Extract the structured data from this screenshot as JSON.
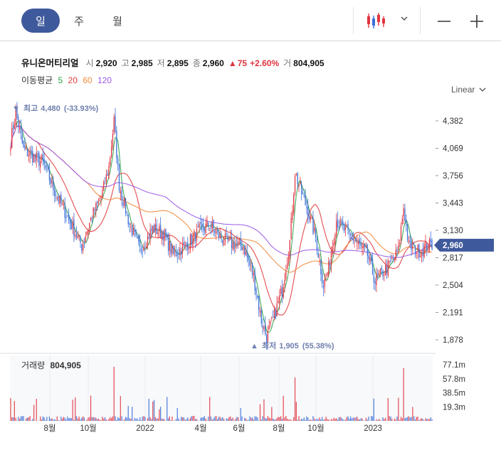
{
  "toolbar": {
    "periods": [
      "일",
      "주",
      "월"
    ],
    "active_period": "일"
  },
  "info": {
    "name": "유니온머티리얼",
    "open_label": "시",
    "open": "2,920",
    "high_label": "고",
    "high": "2,985",
    "low_label": "저",
    "low": "2,895",
    "close_label": "종",
    "close": "2,960",
    "change_arrow": "▲",
    "change": "75",
    "change_pct": "+2.60%",
    "volume_label": "거",
    "volume": "804,905"
  },
  "ma_legend": {
    "label": "이동평균",
    "items": [
      {
        "period": "5",
        "color": "#2da24b"
      },
      {
        "period": "20",
        "color": "#e03a3a"
      },
      {
        "period": "60",
        "color": "#f08a3c"
      },
      {
        "period": "120",
        "color": "#9b59e8"
      }
    ]
  },
  "scale_button": "Linear",
  "colors": {
    "up": "#e0343f",
    "down": "#3a6fd8",
    "accent": "#3f5a9c",
    "annotation": "#6f7fae"
  },
  "chart_data": {
    "type": "candlestick",
    "price_ticks": [
      "4,382",
      "4,069",
      "3,756",
      "3,443",
      "3,130",
      "2,817",
      "2,504",
      "2,191",
      "1,878"
    ],
    "price_tick_values": [
      4382,
      4069,
      3756,
      3443,
      3130,
      2817,
      2504,
      2191,
      1878
    ],
    "price_ylim": [
      1878,
      4382
    ],
    "current_price_label": "2,960",
    "current_price": 2960,
    "high_annotation": {
      "arrow": "▼",
      "label": "최고",
      "value": "4,480",
      "pct": "(-33.93%)"
    },
    "low_annotation": {
      "arrow": "▲",
      "label": "최저",
      "value": "1,905",
      "pct": "(55.38%)"
    },
    "x_labels": [
      "8월",
      "10월",
      "2022",
      "4월",
      "6월",
      "8월",
      "10월",
      "2023"
    ],
    "volume_panel": {
      "label": "거래량",
      "value": "804,905",
      "ticks": [
        "77.1m",
        "57.8m",
        "38.5m",
        "19.3m"
      ],
      "tick_values": [
        77.1,
        57.8,
        38.5,
        19.3
      ]
    },
    "trend_anchors": [
      [
        0,
        4150
      ],
      [
        4,
        4480
      ],
      [
        10,
        4050
      ],
      [
        25,
        3900
      ],
      [
        35,
        3550
      ],
      [
        45,
        3250
      ],
      [
        55,
        2950
      ],
      [
        63,
        3300
      ],
      [
        70,
        3500
      ],
      [
        76,
        3850
      ],
      [
        80,
        4380
      ],
      [
        84,
        3650
      ],
      [
        92,
        3200
      ],
      [
        100,
        2900
      ],
      [
        110,
        3150
      ],
      [
        118,
        3100
      ],
      [
        126,
        2850
      ],
      [
        136,
        2970
      ],
      [
        146,
        3120
      ],
      [
        154,
        3200
      ],
      [
        162,
        3050
      ],
      [
        170,
        2980
      ],
      [
        180,
        2950
      ],
      [
        188,
        2600
      ],
      [
        194,
        2100
      ],
      [
        198,
        1905
      ],
      [
        204,
        2150
      ],
      [
        210,
        2450
      ],
      [
        216,
        3000
      ],
      [
        220,
        3800
      ],
      [
        224,
        3600
      ],
      [
        230,
        3350
      ],
      [
        236,
        3050
      ],
      [
        242,
        2500
      ],
      [
        246,
        2700
      ],
      [
        252,
        3250
      ],
      [
        258,
        3130
      ],
      [
        264,
        3050
      ],
      [
        270,
        2950
      ],
      [
        276,
        2850
      ],
      [
        282,
        2550
      ],
      [
        288,
        2650
      ],
      [
        294,
        2750
      ],
      [
        300,
        2900
      ],
      [
        304,
        3400
      ],
      [
        308,
        2950
      ],
      [
        314,
        2900
      ],
      [
        318,
        2900
      ],
      [
        322,
        2950
      ],
      [
        326,
        2960
      ]
    ],
    "ma_notes": "MA5, MA20, MA60, MA120 overlays"
  }
}
